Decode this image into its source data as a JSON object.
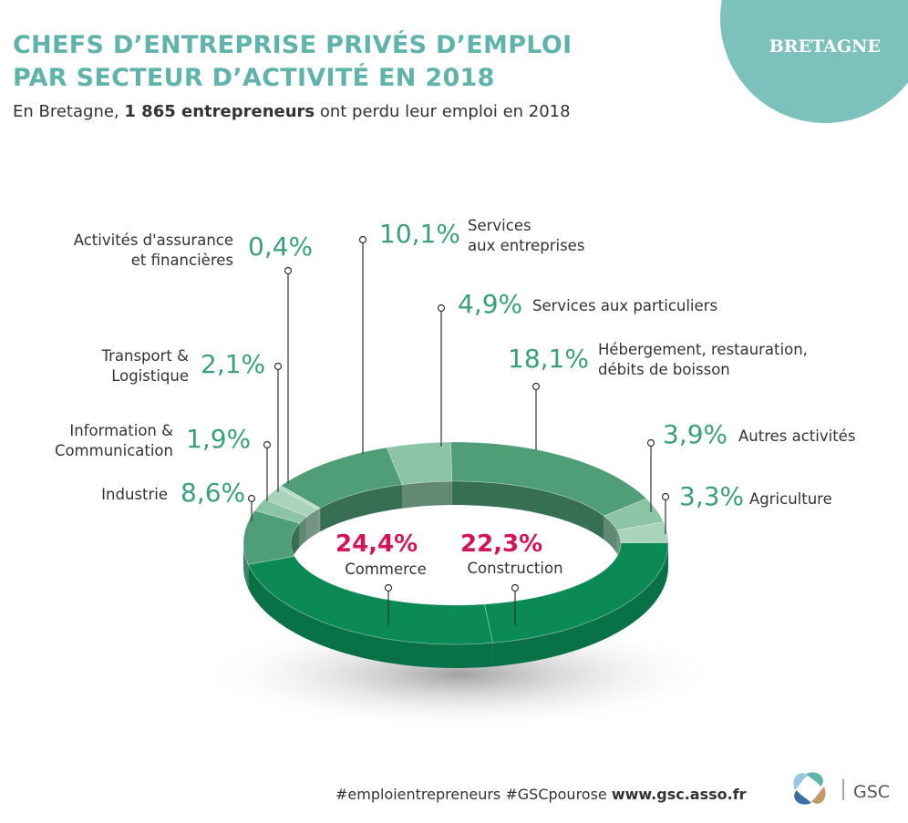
{
  "header": {
    "badge": "BRETAGNE",
    "title_lines": [
      "CHEFS D’ENTREPRISE PRIVÉS D’EMPLOI",
      "PAR SECTEUR D’ACTIVITÉ EN 2018"
    ],
    "subtitle": {
      "before": "En Bretagne, ",
      "bold": "1 865 entrepreneurs",
      "after": " ont perdu leur emploi en 2018"
    }
  },
  "chart_data": {
    "type": "donut",
    "categories": [
      "Construction",
      "Agriculture",
      "Autres activités",
      "Hébergement, restauration,\ndébits de boisson",
      "Services aux particuliers",
      "Services\naux entreprises",
      "Activités d'assurance\net financières",
      "Transport &\nLogistique",
      "Information &\nCommunication",
      "Industrie",
      "Commerce"
    ],
    "values": [
      22.3,
      3.3,
      3.9,
      18.1,
      4.9,
      10.1,
      0.4,
      2.1,
      1.9,
      8.6,
      24.4
    ],
    "value_labels": [
      "22,3%",
      "3,3%",
      "3,9%",
      "18,1%",
      "4,9%",
      "10,1%",
      "0,4%",
      "2,1%",
      "1,9%",
      "8,6%",
      "24,4%"
    ],
    "colors": [
      "#0b8a56",
      "#a9d3bd",
      "#8cc4a6",
      "#4f9e78",
      "#8cc4a6",
      "#4f9e78",
      "#b8dbc8",
      "#a9d3bd",
      "#8cc4a6",
      "#4f9e78",
      "#0b8a56"
    ]
  },
  "footer": {
    "tags": "#emploientrepreneurs #GSCpourose",
    "site": "www.gsc.asso.fr",
    "logo": "GSC"
  }
}
